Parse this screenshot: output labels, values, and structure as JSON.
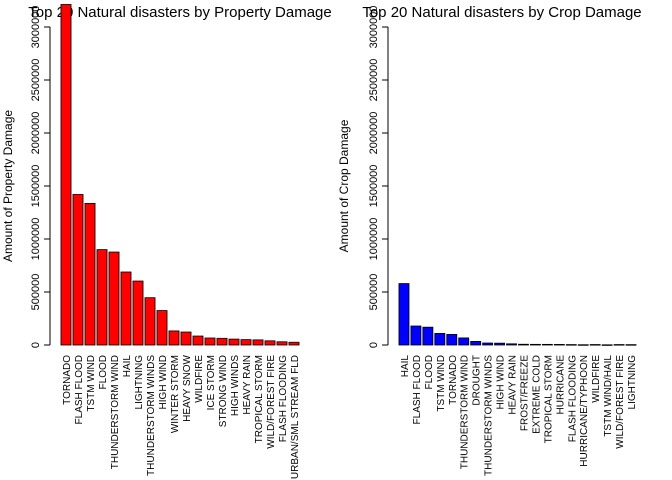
{
  "chart_data": [
    {
      "type": "bar",
      "title": "Top 20 Natural disasters by Property Damage",
      "xlabel": "",
      "ylabel": "Amount of Property Damage",
      "ylim": [
        0,
        3000000
      ],
      "yticks": [
        "0",
        "500000",
        "1000000",
        "1500000",
        "2000000",
        "2500000",
        "3000000"
      ],
      "color": "#ff0000",
      "categories": [
        "TORNADO",
        "FLASH FLOOD",
        "TSTM WIND",
        "FLOOD",
        "THUNDERSTORM WIND",
        "HAIL",
        "LIGHTNING",
        "THUNDERSTORM WINDS",
        "HIGH WIND",
        "WINTER STORM",
        "HEAVY SNOW",
        "WILDFIRE",
        "ICE STORM",
        "STRONG WIND",
        "HIGH WINDS",
        "HEAVY RAIN",
        "TROPICAL STORM",
        "WILD/FOREST FIRE",
        "FLASH FLOODING",
        "URBAN/SML STREAM FLD"
      ],
      "values": [
        3212258,
        1420125,
        1335966,
        899938,
        876844,
        688693,
        603352,
        446293,
        324732,
        132721,
        122252,
        84459,
        66001,
        62994,
        55625,
        50842,
        48424,
        39345,
        30334,
        26052
      ]
    },
    {
      "type": "bar",
      "title": "Top 20 Natural disasters by Crop Damage",
      "xlabel": "",
      "ylabel": "Amount of  Crop Damage",
      "ylim": [
        0,
        3000000
      ],
      "yticks": [
        "0",
        "500000",
        "1000000",
        "1500000",
        "2000000",
        "2500000",
        "3000000"
      ],
      "color": "#0000ff",
      "categories": [
        "HAIL",
        "FLASH FLOOD",
        "FLOOD",
        "TSTM WIND",
        "TORNADO",
        "THUNDERSTORM WIND",
        "DROUGHT",
        "THUNDERSTORM WINDS",
        "HIGH WIND",
        "HEAVY RAIN",
        "FROST/FREEZE",
        "EXTREME COLD",
        "TROPICAL STORM",
        "HURRICANE",
        "FLASH FLOODING",
        "HURRICANE/TYPHOON",
        "WILDFIRE",
        "TSTM WIND/HAIL",
        "WILD/FOREST FIRE",
        "LIGHTNING"
      ],
      "values": [
        579596,
        179200,
        168038,
        109203,
        100019,
        66791,
        33899,
        18685,
        17283,
        11123,
        7034,
        6121,
        5899,
        5339,
        4000,
        2608,
        4364,
        1942,
        4189,
        3581
      ]
    }
  ]
}
